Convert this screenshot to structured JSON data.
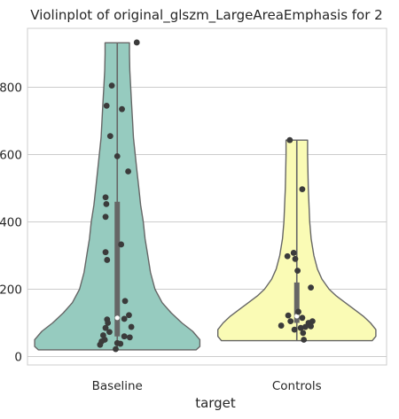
{
  "chart_data": {
    "type": "violin",
    "title": "Violinplot of original_glszm_LargeAreaEmphasis for 2",
    "xlabel": "target",
    "ylabel": "",
    "categories": [
      "Baseline",
      "Controls"
    ],
    "ylim": [
      -25,
      975
    ],
    "yticks": [
      0,
      200,
      400,
      600,
      800
    ],
    "grid": true,
    "cut": "data range",
    "series": [
      {
        "category": "Baseline",
        "color": "#96cbbf",
        "min": 20,
        "max": 932,
        "q1": 60,
        "median": 115,
        "q3": 460,
        "density_profile": [
          [
            20,
            0.44
          ],
          [
            30,
            0.46
          ],
          [
            50,
            0.46
          ],
          [
            75,
            0.42
          ],
          [
            100,
            0.36
          ],
          [
            130,
            0.3
          ],
          [
            160,
            0.25
          ],
          [
            200,
            0.21
          ],
          [
            250,
            0.185
          ],
          [
            300,
            0.17
          ],
          [
            350,
            0.155
          ],
          [
            400,
            0.145
          ],
          [
            450,
            0.13
          ],
          [
            500,
            0.12
          ],
          [
            550,
            0.11
          ],
          [
            600,
            0.1
          ],
          [
            650,
            0.09
          ],
          [
            700,
            0.085
          ],
          [
            750,
            0.08
          ],
          [
            800,
            0.075
          ],
          [
            850,
            0.07
          ],
          [
            900,
            0.068
          ],
          [
            932,
            0.068
          ]
        ],
        "points": [
          {
            "x": -0.0304,
            "y": 805
          },
          {
            "x": -0.0594,
            "y": 745
          },
          {
            "x": 0.0261,
            "y": 735
          },
          {
            "x": -0.0391,
            "y": 655
          },
          {
            "x": 0.0,
            "y": 595
          },
          {
            "x": 0.0609,
            "y": 550
          },
          {
            "x": -0.0652,
            "y": 473
          },
          {
            "x": -0.0609,
            "y": 453
          },
          {
            "x": -0.0652,
            "y": 415
          },
          {
            "x": 0.0217,
            "y": 333
          },
          {
            "x": -0.0652,
            "y": 310
          },
          {
            "x": -0.0565,
            "y": 287
          },
          {
            "x": 0.1087,
            "y": 933
          },
          {
            "x": 0.0435,
            "y": 165
          },
          {
            "x": 0.0652,
            "y": 123
          },
          {
            "x": 0.0391,
            "y": 112
          },
          {
            "x": -0.0565,
            "y": 110
          },
          {
            "x": -0.0522,
            "y": 100
          },
          {
            "x": 0.0783,
            "y": 88
          },
          {
            "x": -0.0652,
            "y": 85
          },
          {
            "x": -0.0435,
            "y": 73
          },
          {
            "x": -0.0783,
            "y": 63
          },
          {
            "x": 0.0391,
            "y": 60
          },
          {
            "x": 0.0696,
            "y": 57
          },
          {
            "x": -0.0696,
            "y": 50
          },
          {
            "x": -0.087,
            "y": 45
          },
          {
            "x": 0.0,
            "y": 40
          },
          {
            "x": 0.0174,
            "y": 38
          },
          {
            "x": -0.0957,
            "y": 35
          },
          {
            "x": -0.0087,
            "y": 22
          }
        ]
      },
      {
        "category": "Controls",
        "color": "#fafbb5",
        "min": 47,
        "max": 643,
        "q1": 100,
        "median": 120,
        "q3": 220,
        "density_profile": [
          [
            47,
            0.42
          ],
          [
            60,
            0.44
          ],
          [
            80,
            0.44
          ],
          [
            100,
            0.41
          ],
          [
            120,
            0.37
          ],
          [
            140,
            0.32
          ],
          [
            160,
            0.27
          ],
          [
            180,
            0.22
          ],
          [
            200,
            0.18
          ],
          [
            230,
            0.14
          ],
          [
            260,
            0.115
          ],
          [
            300,
            0.095
          ],
          [
            350,
            0.08
          ],
          [
            400,
            0.072
          ],
          [
            450,
            0.068
          ],
          [
            500,
            0.064
          ],
          [
            550,
            0.062
          ],
          [
            600,
            0.06
          ],
          [
            643,
            0.06
          ]
        ],
        "points": [
          {
            "x": -0.0391,
            "y": 643
          },
          {
            "x": 0.0304,
            "y": 497
          },
          {
            "x": -0.0522,
            "y": 298
          },
          {
            "x": -0.0174,
            "y": 308
          },
          {
            "x": -0.0087,
            "y": 290
          },
          {
            "x": 0.0043,
            "y": 255
          },
          {
            "x": 0.0783,
            "y": 205
          },
          {
            "x": 0.0087,
            "y": 133
          },
          {
            "x": -0.0478,
            "y": 122
          },
          {
            "x": 0.0304,
            "y": 115
          },
          {
            "x": -0.0348,
            "y": 105
          },
          {
            "x": 0.087,
            "y": 105
          },
          {
            "x": 0.0652,
            "y": 100
          },
          {
            "x": -0.087,
            "y": 92
          },
          {
            "x": 0.0783,
            "y": 90
          },
          {
            "x": 0.0478,
            "y": 88
          },
          {
            "x": 0.0217,
            "y": 85
          },
          {
            "x": -0.013,
            "y": 80
          },
          {
            "x": 0.0348,
            "y": 70
          },
          {
            "x": 0.0391,
            "y": 50
          }
        ]
      }
    ]
  }
}
